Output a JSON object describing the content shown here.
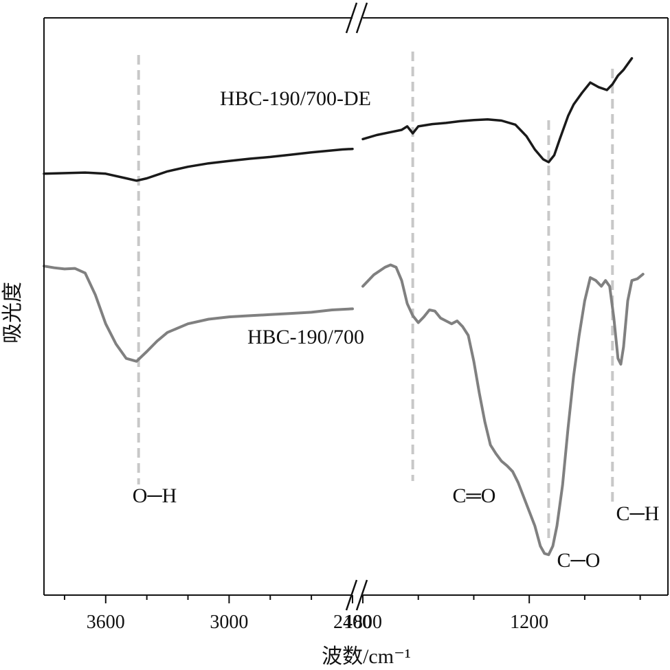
{
  "chart_data": {
    "type": "line",
    "title": "",
    "xlabel": "波数/cm⁻¹",
    "ylabel": "吸光度",
    "x_axis": {
      "reversed": true,
      "broken": true,
      "break_between": [
        2400,
        1800
      ],
      "left_range": [
        3900,
        2400
      ],
      "right_range": [
        1800,
        700
      ],
      "ticks": [
        3600,
        3000,
        2400,
        1800,
        1200
      ],
      "tick_labels": [
        "3600",
        "3000",
        "2400",
        "1800",
        "1200"
      ]
    },
    "ylim": [
      0,
      1
    ],
    "grid": false,
    "series": [
      {
        "name": "HBC-190/700-DE",
        "color": "#1a1a1a",
        "points": [
          [
            3900,
            0.73
          ],
          [
            3700,
            0.732
          ],
          [
            3600,
            0.73
          ],
          [
            3500,
            0.722
          ],
          [
            3450,
            0.718
          ],
          [
            3400,
            0.722
          ],
          [
            3300,
            0.734
          ],
          [
            3200,
            0.742
          ],
          [
            3100,
            0.748
          ],
          [
            3000,
            0.752
          ],
          [
            2900,
            0.756
          ],
          [
            2800,
            0.759
          ],
          [
            2700,
            0.763
          ],
          [
            2600,
            0.767
          ],
          [
            2450,
            0.772
          ],
          [
            2400,
            0.773
          ],
          [
            1800,
            0.79
          ],
          [
            1750,
            0.797
          ],
          [
            1700,
            0.802
          ],
          [
            1660,
            0.806
          ],
          [
            1640,
            0.812
          ],
          [
            1620,
            0.8
          ],
          [
            1600,
            0.812
          ],
          [
            1550,
            0.816
          ],
          [
            1500,
            0.818
          ],
          [
            1450,
            0.821
          ],
          [
            1400,
            0.823
          ],
          [
            1350,
            0.824
          ],
          [
            1300,
            0.822
          ],
          [
            1250,
            0.815
          ],
          [
            1210,
            0.795
          ],
          [
            1180,
            0.772
          ],
          [
            1150,
            0.755
          ],
          [
            1130,
            0.75
          ],
          [
            1110,
            0.762
          ],
          [
            1090,
            0.79
          ],
          [
            1060,
            0.83
          ],
          [
            1040,
            0.85
          ],
          [
            1010,
            0.87
          ],
          [
            980,
            0.888
          ],
          [
            950,
            0.88
          ],
          [
            920,
            0.875
          ],
          [
            900,
            0.885
          ],
          [
            880,
            0.9
          ],
          [
            860,
            0.91
          ],
          [
            830,
            0.93
          ]
        ]
      },
      {
        "name": "HBC-190/700",
        "color": "#808080",
        "points": [
          [
            3900,
            0.57
          ],
          [
            3850,
            0.567
          ],
          [
            3800,
            0.565
          ],
          [
            3750,
            0.566
          ],
          [
            3700,
            0.558
          ],
          [
            3650,
            0.52
          ],
          [
            3600,
            0.47
          ],
          [
            3550,
            0.435
          ],
          [
            3500,
            0.41
          ],
          [
            3450,
            0.405
          ],
          [
            3400,
            0.422
          ],
          [
            3350,
            0.44
          ],
          [
            3300,
            0.455
          ],
          [
            3200,
            0.47
          ],
          [
            3100,
            0.478
          ],
          [
            3000,
            0.482
          ],
          [
            2900,
            0.484
          ],
          [
            2800,
            0.486
          ],
          [
            2700,
            0.488
          ],
          [
            2600,
            0.49
          ],
          [
            2500,
            0.494
          ],
          [
            2400,
            0.496
          ],
          [
            1800,
            0.535
          ],
          [
            1760,
            0.555
          ],
          [
            1720,
            0.568
          ],
          [
            1700,
            0.572
          ],
          [
            1680,
            0.568
          ],
          [
            1660,
            0.545
          ],
          [
            1640,
            0.505
          ],
          [
            1620,
            0.484
          ],
          [
            1600,
            0.472
          ],
          [
            1580,
            0.482
          ],
          [
            1560,
            0.494
          ],
          [
            1540,
            0.492
          ],
          [
            1520,
            0.48
          ],
          [
            1500,
            0.475
          ],
          [
            1480,
            0.47
          ],
          [
            1460,
            0.475
          ],
          [
            1440,
            0.465
          ],
          [
            1420,
            0.45
          ],
          [
            1400,
            0.405
          ],
          [
            1380,
            0.35
          ],
          [
            1360,
            0.3
          ],
          [
            1340,
            0.26
          ],
          [
            1320,
            0.245
          ],
          [
            1300,
            0.232
          ],
          [
            1280,
            0.224
          ],
          [
            1260,
            0.214
          ],
          [
            1240,
            0.195
          ],
          [
            1220,
            0.17
          ],
          [
            1200,
            0.145
          ],
          [
            1180,
            0.12
          ],
          [
            1160,
            0.085
          ],
          [
            1145,
            0.072
          ],
          [
            1130,
            0.07
          ],
          [
            1115,
            0.085
          ],
          [
            1100,
            0.12
          ],
          [
            1080,
            0.19
          ],
          [
            1060,
            0.29
          ],
          [
            1040,
            0.38
          ],
          [
            1020,
            0.45
          ],
          [
            1000,
            0.51
          ],
          [
            980,
            0.55
          ],
          [
            960,
            0.545
          ],
          [
            940,
            0.535
          ],
          [
            925,
            0.545
          ],
          [
            910,
            0.535
          ],
          [
            895,
            0.48
          ],
          [
            880,
            0.41
          ],
          [
            870,
            0.4
          ],
          [
            860,
            0.43
          ],
          [
            845,
            0.51
          ],
          [
            830,
            0.545
          ],
          [
            810,
            0.548
          ],
          [
            790,
            0.556
          ]
        ]
      }
    ],
    "series_labels": [
      {
        "text": "HBC-190/700-DE"
      },
      {
        "text": "HBC-190/700"
      }
    ],
    "annotations": [
      {
        "text": "O─H",
        "x": 3440
      },
      {
        "text": "C═O",
        "x": 1620
      },
      {
        "text": "C─O",
        "x": 1130
      },
      {
        "text": "C─H",
        "x": 900
      }
    ],
    "reference_line_color": "#c8c8c8"
  }
}
